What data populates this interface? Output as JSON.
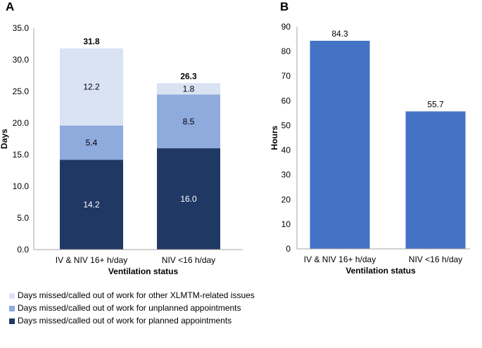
{
  "panels": {
    "a_label": "A",
    "b_label": "B"
  },
  "chart_data": [
    {
      "type": "bar",
      "stacked": true,
      "panel": "A",
      "title": "",
      "xlabel": "Ventilation status",
      "ylabel": "Days",
      "ylim": [
        0,
        35
      ],
      "yticks": [
        "0.0",
        "5.0",
        "10.0",
        "15.0",
        "20.0",
        "25.0",
        "30.0",
        "35.0"
      ],
      "categories": [
        "IV & NIV 16+ h/day",
        "NIV <16 h/day"
      ],
      "totals": [
        "31.8",
        "26.3"
      ],
      "total_values": [
        31.8,
        26.3
      ],
      "series": [
        {
          "name": "Days missed/called out of work for planned appointments",
          "values": [
            14.2,
            16.0
          ],
          "labels": [
            "14.2",
            "16.0"
          ],
          "color": "#1f3864",
          "label_color": "#ffffff"
        },
        {
          "name": "Days missed/called out of work for unplanned appointments",
          "values": [
            5.4,
            8.5
          ],
          "labels": [
            "5.4",
            "8.5"
          ],
          "color": "#8faadc",
          "label_color": "#000000"
        },
        {
          "name": "Days missed/called out of work for other XLMTM-related issues",
          "values": [
            12.2,
            1.8
          ],
          "labels": [
            "12.2",
            "1.8"
          ],
          "color": "#dae3f3",
          "label_color": "#000000"
        }
      ],
      "legend": [
        {
          "text": "Days missed/called out of work for other XLMTM-related issues",
          "color": "#dae3f3"
        },
        {
          "text": "Days missed/called out of work for unplanned appointments",
          "color": "#8faadc"
        },
        {
          "text": "Days missed/called out of work for planned appointments",
          "color": "#1f3864"
        }
      ]
    },
    {
      "type": "bar",
      "panel": "B",
      "title": "",
      "xlabel": "Ventilation status",
      "ylabel": "Hours",
      "ylim": [
        0,
        90
      ],
      "yticks": [
        "0",
        "10",
        "20",
        "30",
        "40",
        "50",
        "60",
        "70",
        "80",
        "90"
      ],
      "categories": [
        "IV & NIV 16+ h/day",
        "NIV <16 h/day"
      ],
      "values": [
        84.3,
        55.7
      ],
      "labels": [
        "84.3",
        "55.7"
      ],
      "color": "#4472c4"
    }
  ]
}
